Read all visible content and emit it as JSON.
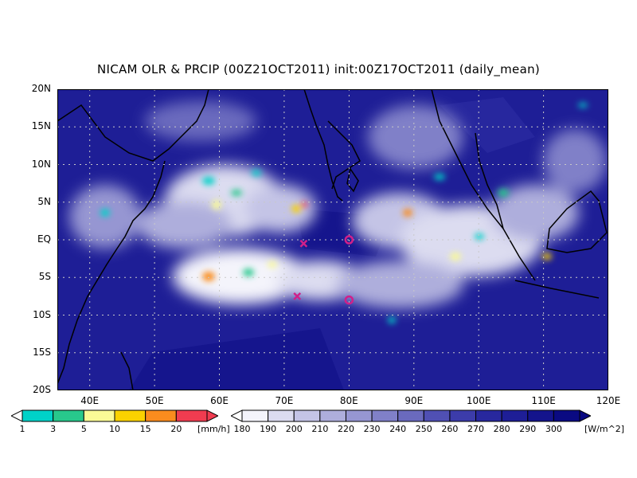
{
  "title": "NICAM OLR & PRCIP (00Z21OCT2011) init:00Z17OCT2011 (daily_mean)",
  "map": {
    "lon_range": [
      35,
      120
    ],
    "lat_range": [
      -20,
      20
    ],
    "lat_ticks": [
      {
        "value": 20,
        "label": "20N"
      },
      {
        "value": 15,
        "label": "15N"
      },
      {
        "value": 10,
        "label": "10N"
      },
      {
        "value": 5,
        "label": "5N"
      },
      {
        "value": 0,
        "label": "EQ"
      },
      {
        "value": -5,
        "label": "5S"
      },
      {
        "value": -10,
        "label": "10S"
      },
      {
        "value": -15,
        "label": "15S"
      },
      {
        "value": -20,
        "label": "20S"
      }
    ],
    "lon_ticks": [
      {
        "value": 40,
        "label": "40E"
      },
      {
        "value": 50,
        "label": "50E"
      },
      {
        "value": 60,
        "label": "60E"
      },
      {
        "value": 70,
        "label": "70E"
      },
      {
        "value": 80,
        "label": "80E"
      },
      {
        "value": 90,
        "label": "90E"
      },
      {
        "value": 100,
        "label": "100E"
      },
      {
        "value": 110,
        "label": "110E"
      },
      {
        "value": 120,
        "label": "120E"
      }
    ],
    "markers": [
      {
        "type": "x",
        "lon": 73,
        "lat": -0.5,
        "color": "#d0208a"
      },
      {
        "type": "x",
        "lon": 72,
        "lat": -7.5,
        "color": "#d0208a"
      },
      {
        "type": "o",
        "lon": 80,
        "lat": 0,
        "color": "#d0208a"
      },
      {
        "type": "o",
        "lon": 80,
        "lat": -8,
        "color": "#d0208a"
      }
    ]
  },
  "precip_colorbar": {
    "labels": [
      "1",
      "3",
      "5",
      "10",
      "15",
      "20"
    ],
    "colors": [
      "#00d2c8",
      "#28c88c",
      "#fafa96",
      "#fad200",
      "#fa8c1e",
      "#f03c50"
    ],
    "unit": "[mm/h]"
  },
  "olr_colorbar": {
    "labels": [
      "180",
      "190",
      "200",
      "210",
      "220",
      "230",
      "240",
      "250",
      "260",
      "270",
      "280",
      "290",
      "300"
    ],
    "colors": [
      "#f4f4fb",
      "#dcdcf0",
      "#c4c4e6",
      "#aeaedc",
      "#9696d2",
      "#8080c8",
      "#6a6abe",
      "#5050b4",
      "#3c3caa",
      "#28289e",
      "#1e1e96",
      "#14148c",
      "#0a0a82"
    ],
    "unit": "[W/m^2]"
  }
}
